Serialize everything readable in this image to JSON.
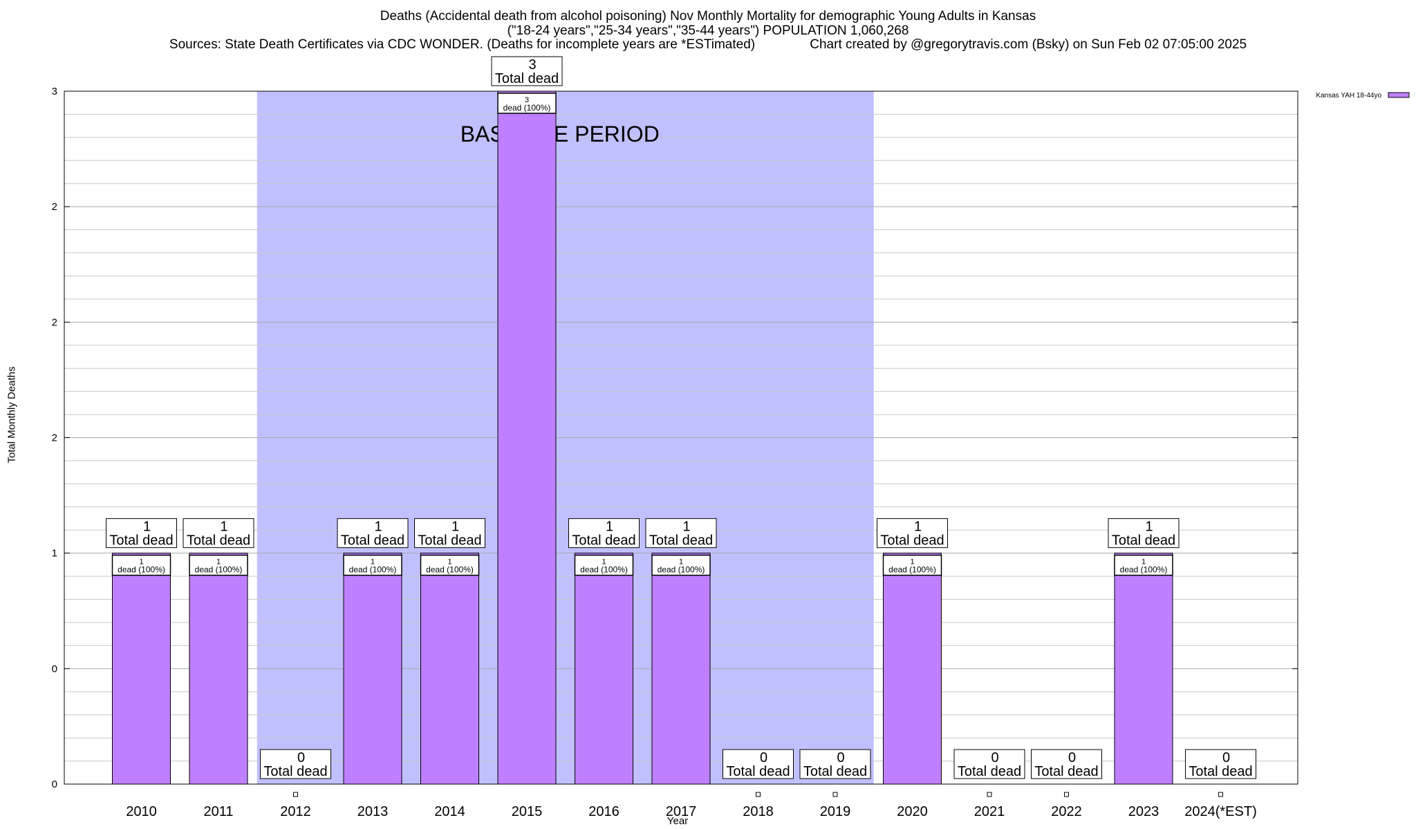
{
  "chart_data": {
    "type": "bar",
    "title_lines": [
      "Deaths (Accidental death from alcohol poisoning) Nov Monthly Mortality for demographic Young Adults in Kansas",
      "(\"18-24 years\",\"25-34 years\",\"35-44 years\") POPULATION 1,060,268",
      "Sources: State Death Certificates via CDC WONDER. (Deaths for incomplete years are *ESTimated)               Chart created by @gregorytravis.com (Bsky) on Sun Feb 02 07:05:00 2025"
    ],
    "xlabel": "Year",
    "ylabel": "Total Monthly Deaths",
    "ylim": [
      0,
      3
    ],
    "y_tick_values": [
      0,
      0.5,
      1,
      1.5,
      2,
      2.5,
      3
    ],
    "y_tick_labels": [
      "0",
      "0",
      "1",
      "2",
      "2",
      "2",
      "3"
    ],
    "categories": [
      "2010",
      "2011",
      "2012",
      "2013",
      "2014",
      "2015",
      "2016",
      "2017",
      "2018",
      "2019",
      "2020",
      "2021",
      "2022",
      "2023",
      "2024(*EST)"
    ],
    "series": [
      {
        "name": "Kansas YAH 18-44yo",
        "values": [
          1,
          1,
          0,
          1,
          1,
          3,
          1,
          1,
          0,
          0,
          1,
          0,
          0,
          1,
          0
        ],
        "color": "#bf80ff"
      }
    ],
    "total_label_suffix": "Total dead",
    "inner_label_suffix": "dead (100%)",
    "baseline_period": {
      "label": "BASELINE PERIOD",
      "start_category": "2012",
      "end_category": "2019",
      "color": "#c0c0ff"
    },
    "legend": {
      "position": "top-right"
    },
    "grid": true
  }
}
